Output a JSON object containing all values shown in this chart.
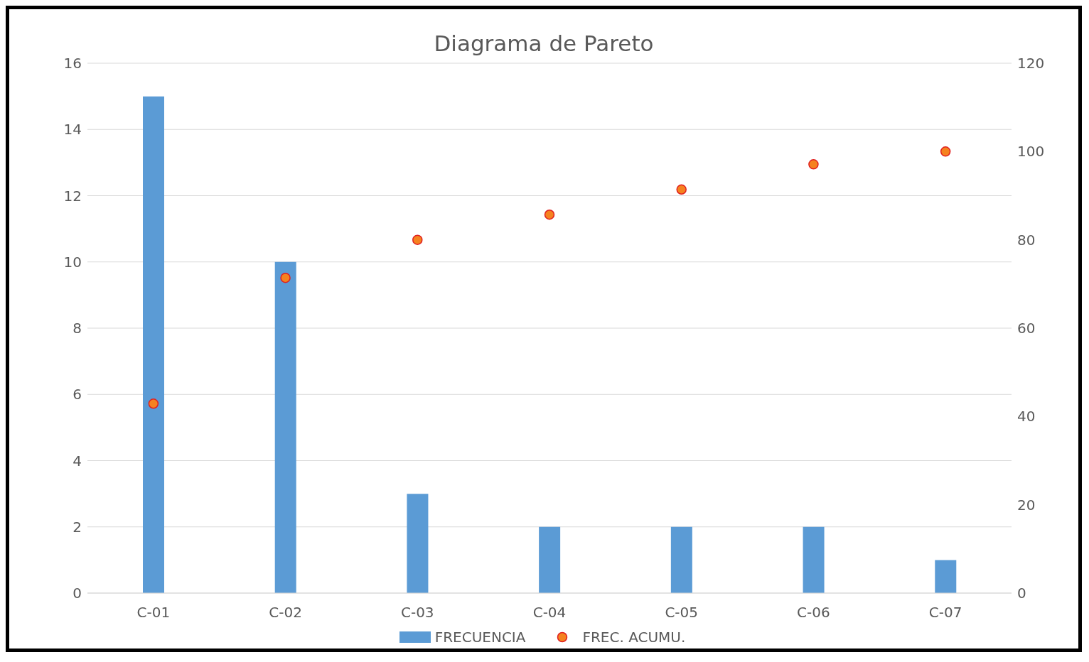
{
  "chart_data": {
    "type": "bar",
    "title": "Diagrama de Pareto",
    "categories": [
      "C-01",
      "C-02",
      "C-03",
      "C-04",
      "C-05",
      "C-06",
      "C-07"
    ],
    "series": [
      {
        "name": "FRECUENCIA",
        "color": "#5b9bd5",
        "values": [
          15,
          10,
          3,
          2,
          2,
          2,
          1
        ]
      },
      {
        "name": "FREC. ACUMU.",
        "type": "scatter",
        "axis": "y2",
        "color": "#f5821f",
        "values": [
          42.9,
          71.4,
          80,
          85.7,
          91.4,
          97.1,
          100
        ]
      }
    ],
    "ylim": [
      0,
      16
    ],
    "yticks": [
      0,
      2,
      4,
      6,
      8,
      10,
      12,
      14,
      16
    ],
    "y2lim": [
      0,
      120
    ],
    "y2ticks": [
      0,
      20,
      40,
      60,
      80,
      100,
      120
    ],
    "grid": "y",
    "legend": "bottom",
    "marker": "circle"
  }
}
